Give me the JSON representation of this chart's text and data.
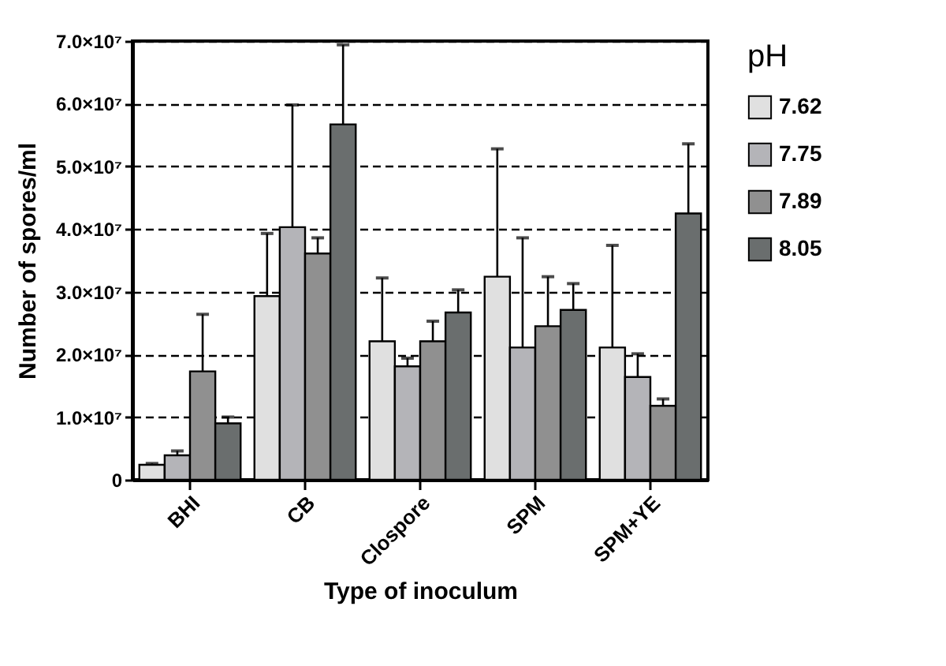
{
  "chart_data": {
    "type": "bar",
    "xlabel": "Type of inoculum",
    "ylabel": "Number of spores/ml",
    "legend_title": "pH",
    "categories": [
      "BHI",
      "CB",
      "Clospore",
      "SPM",
      "SPM+YE"
    ],
    "series": [
      {
        "name": "7.62",
        "color": "#e0e0e0",
        "values": [
          2400000,
          29300000,
          22100000,
          32400000,
          21100000
        ],
        "errors": [
          [
            2400000,
            2600000
          ],
          [
            29300000,
            39300000
          ],
          [
            22100000,
            32200000
          ],
          [
            32400000,
            52800000
          ],
          [
            21100000,
            37400000
          ]
        ]
      },
      {
        "name": "7.75",
        "color": "#b4b4b8",
        "values": [
          3900000,
          40300000,
          18100000,
          21100000,
          16400000
        ],
        "errors": [
          [
            3900000,
            4600000
          ],
          [
            40300000,
            59800000
          ],
          [
            18100000,
            19400000
          ],
          [
            21100000,
            38600000
          ],
          [
            16400000,
            20100000
          ]
        ]
      },
      {
        "name": "7.89",
        "color": "#909090",
        "values": [
          17300000,
          36100000,
          22100000,
          24500000,
          11800000
        ],
        "errors": [
          [
            17300000,
            26400000
          ],
          [
            36100000,
            38600000
          ],
          [
            22100000,
            25300000
          ],
          [
            24500000,
            32400000
          ],
          [
            11800000,
            12900000
          ]
        ]
      },
      {
        "name": "8.05",
        "color": "#6a6e6e",
        "values": [
          9000000,
          56700000,
          26700000,
          27100000,
          42500000
        ],
        "errors": [
          [
            9000000,
            10000000
          ],
          [
            56700000,
            69400000
          ],
          [
            26700000,
            30300000
          ],
          [
            27100000,
            31300000
          ],
          [
            42500000,
            53600000
          ]
        ]
      }
    ],
    "ylim": [
      0,
      70000000
    ],
    "yticks": [
      0,
      {
        "value": 10000000,
        "label": "1.0×10⁷"
      },
      {
        "value": 20000000,
        "label": "2.0×10⁷"
      },
      {
        "value": 30000000,
        "label": "3.0×10⁷"
      },
      {
        "value": 40000000,
        "label": "4.0×10⁷"
      },
      {
        "value": 50000000,
        "label": "5.0×10⁷"
      },
      {
        "value": 60000000,
        "label": "6.0×10⁷"
      },
      {
        "value": 70000000,
        "label": "7.0×10⁷"
      }
    ],
    "grid": "y",
    "legend": "right"
  }
}
